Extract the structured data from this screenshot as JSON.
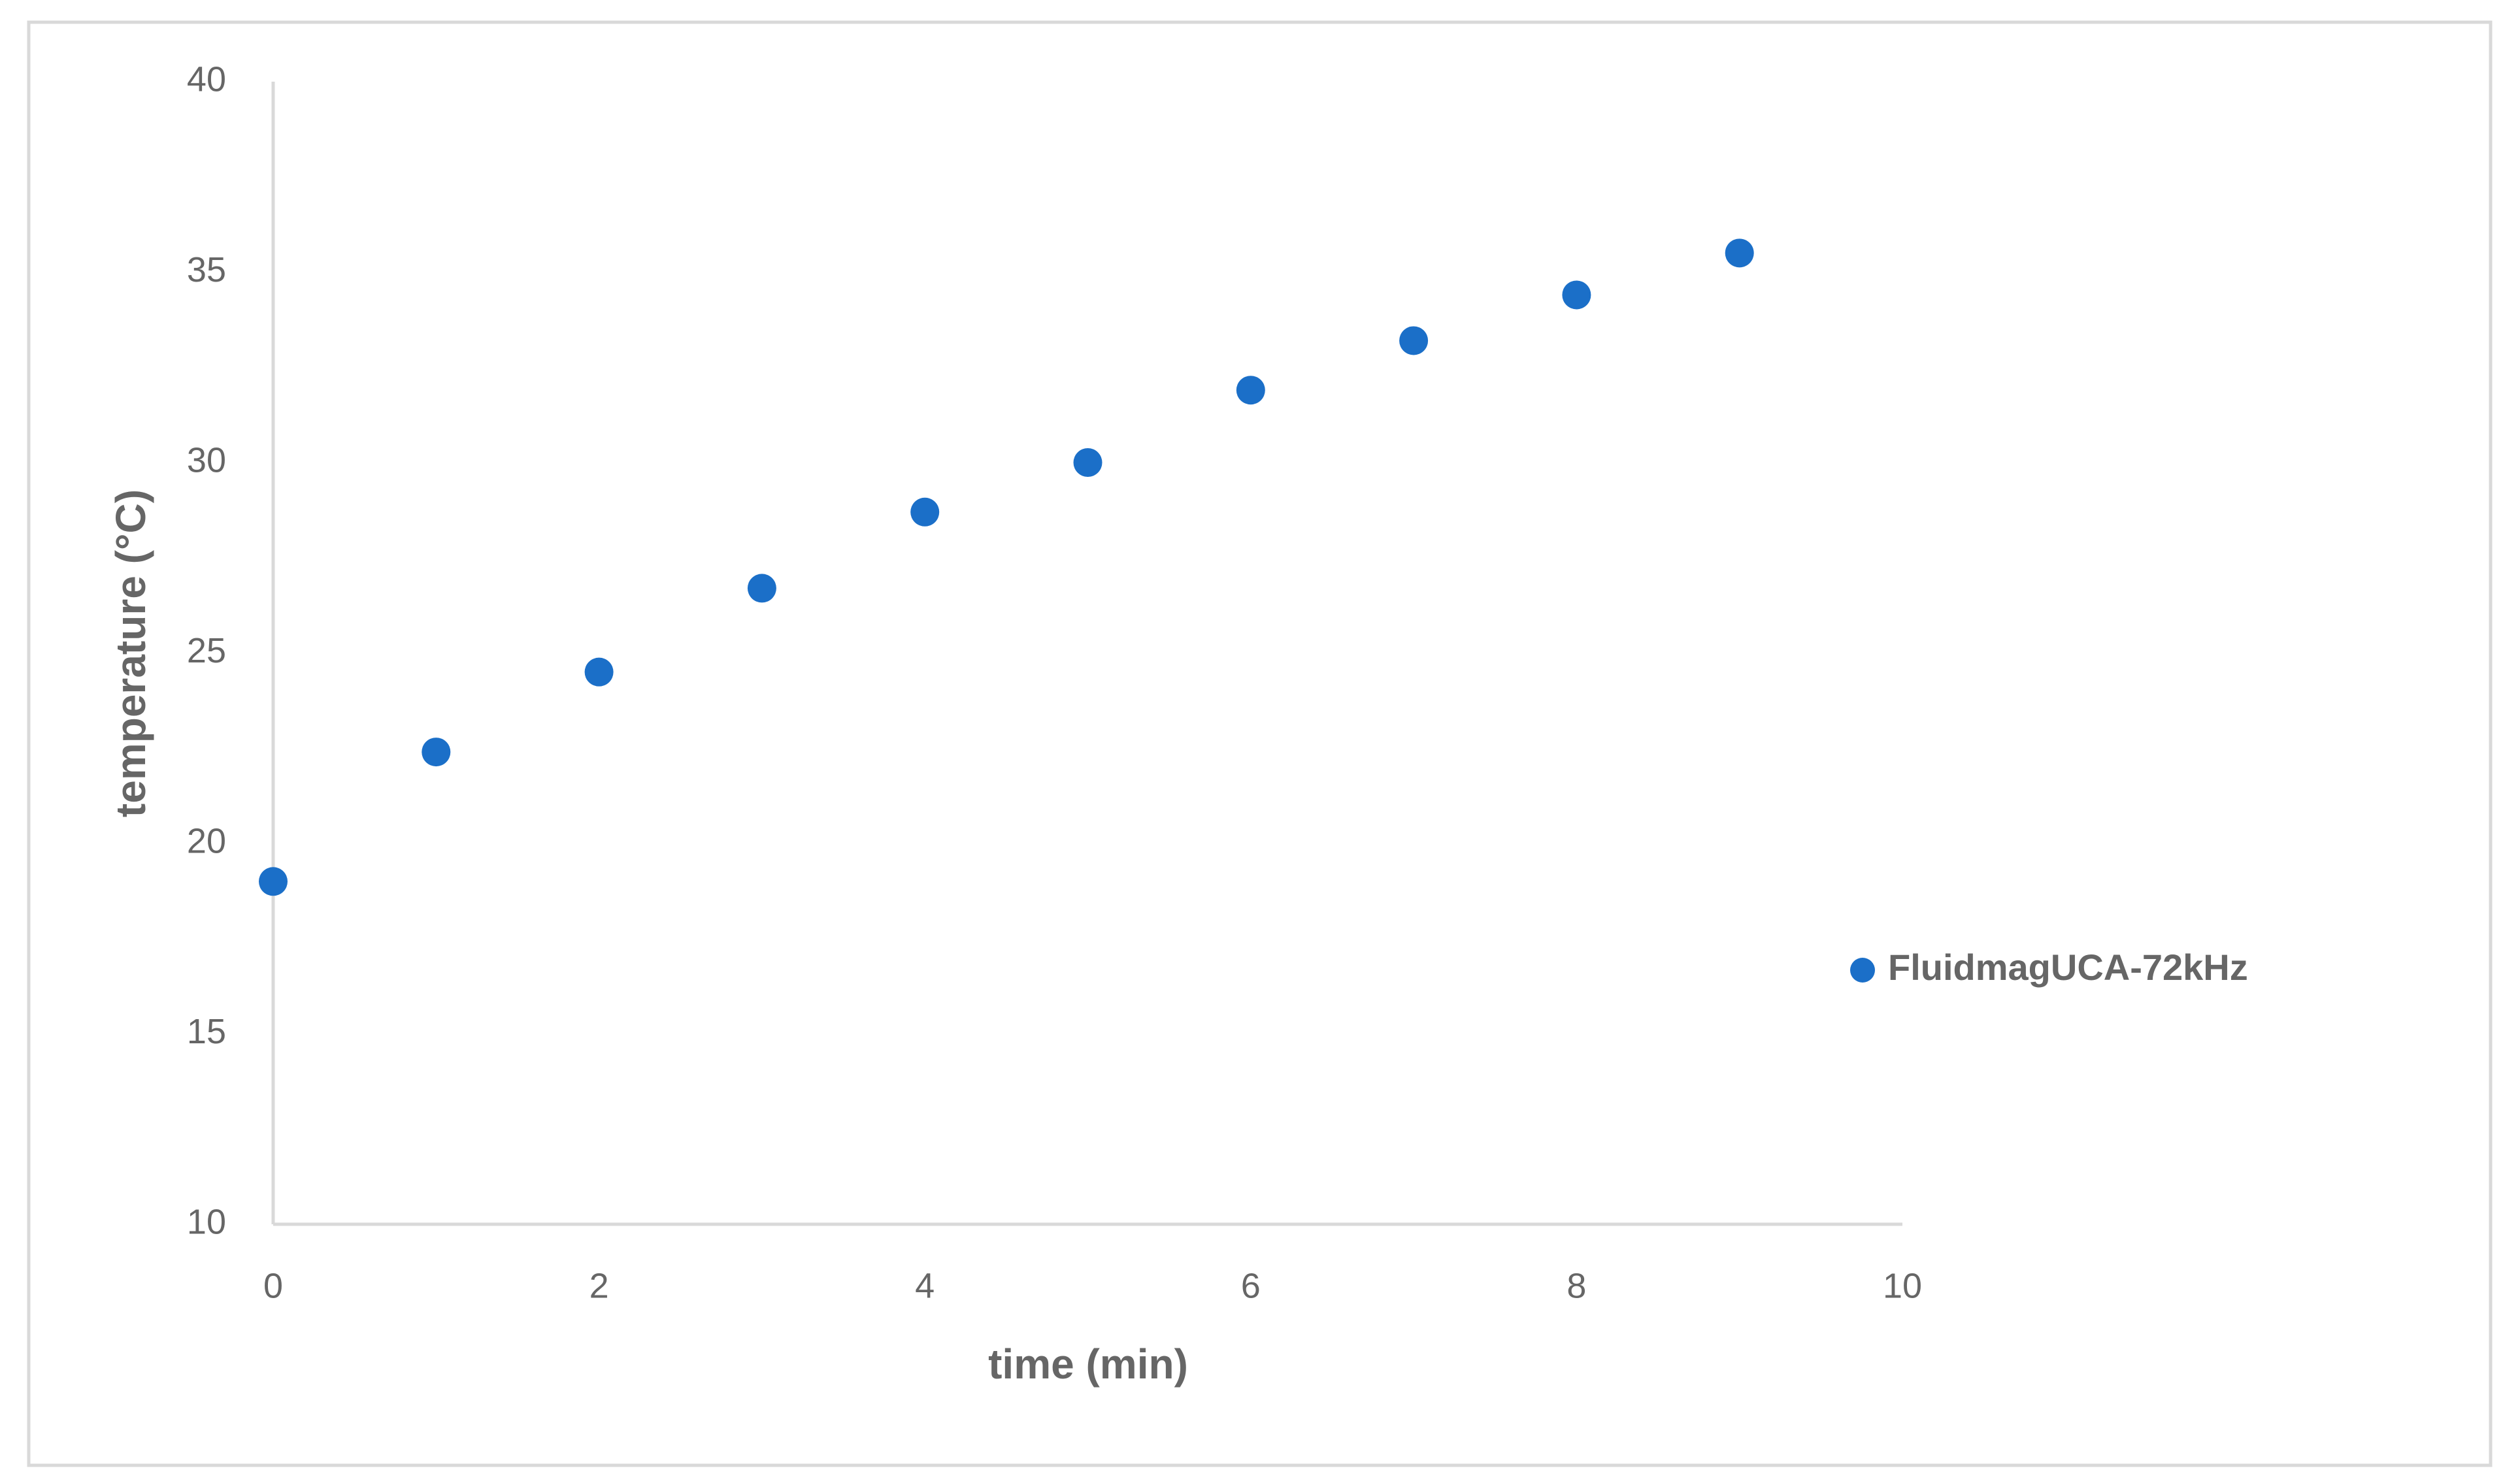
{
  "chart_data": {
    "type": "scatter",
    "x": [
      0,
      1,
      2,
      3,
      4,
      5,
      6,
      7,
      8,
      9
    ],
    "series": [
      {
        "name": "FluidmagUCA-72kHz",
        "color": "#1b6fc8",
        "values": [
          19.0,
          22.4,
          24.5,
          26.7,
          28.7,
          30.0,
          31.9,
          33.2,
          34.4,
          35.5
        ]
      }
    ],
    "xlabel": "time (min)",
    "ylabel": "temperature (°C)",
    "xlim": [
      0,
      10
    ],
    "xticks": [
      0,
      2,
      4,
      6,
      8,
      10
    ],
    "ylim": [
      10,
      40
    ],
    "yticks": [
      10,
      15,
      20,
      25,
      30,
      35,
      40
    ],
    "grid": false,
    "legend": "right"
  }
}
